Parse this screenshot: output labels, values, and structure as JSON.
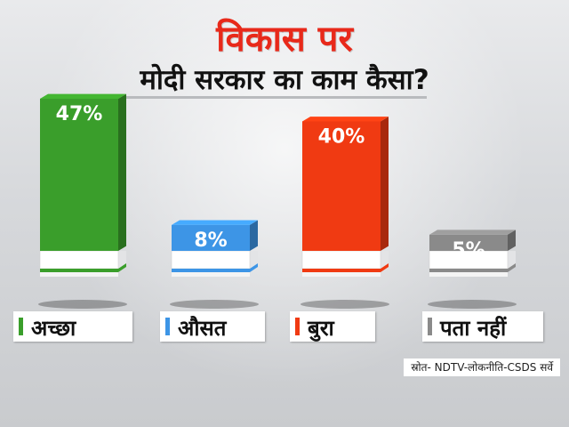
{
  "title": "विकास पर",
  "subtitle": "मोदी सरकार का काम कैसा?",
  "source": "स्रोत- NDTV-लोकनीति-CSDS सर्वे",
  "chart_data": {
    "type": "bar",
    "categories": [
      "अच्छा",
      "औसत",
      "बुरा",
      "पता नहीं"
    ],
    "values": [
      47,
      8,
      40,
      5
    ],
    "value_labels": [
      "47%",
      "8%",
      "40%",
      "5%"
    ],
    "colors": [
      "#3a9e2b",
      "#3d95e6",
      "#f03a12",
      "#8a8a8a"
    ],
    "ylim": [
      0,
      50
    ],
    "grid": false,
    "legend": "bottom"
  }
}
